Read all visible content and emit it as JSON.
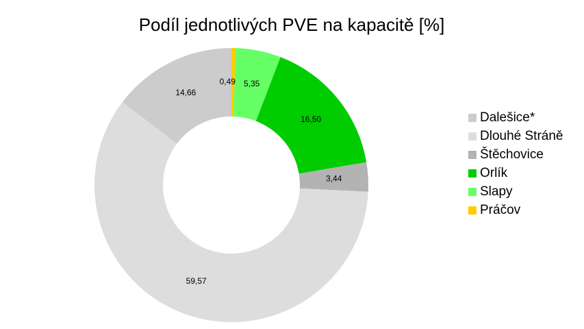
{
  "chart_data": {
    "type": "donut",
    "title": "Podíl jednotlivých PVE na kapacitě [%]",
    "categories": [
      "Dalešice*",
      "Dlouhé Stráně",
      "Štěchovice",
      "Orlík",
      "Slapy",
      "Práčov"
    ],
    "values": [
      14.66,
      59.57,
      3.44,
      16.5,
      5.35,
      0.49
    ],
    "value_labels": [
      "14,66",
      "59,57",
      "3,44",
      "16,50",
      "5,35",
      "0,49"
    ],
    "colors": [
      "#cccccc",
      "#dddddd",
      "#b3b3b3",
      "#00cc00",
      "#66ff66",
      "#ffcc00"
    ],
    "legend": "right"
  }
}
